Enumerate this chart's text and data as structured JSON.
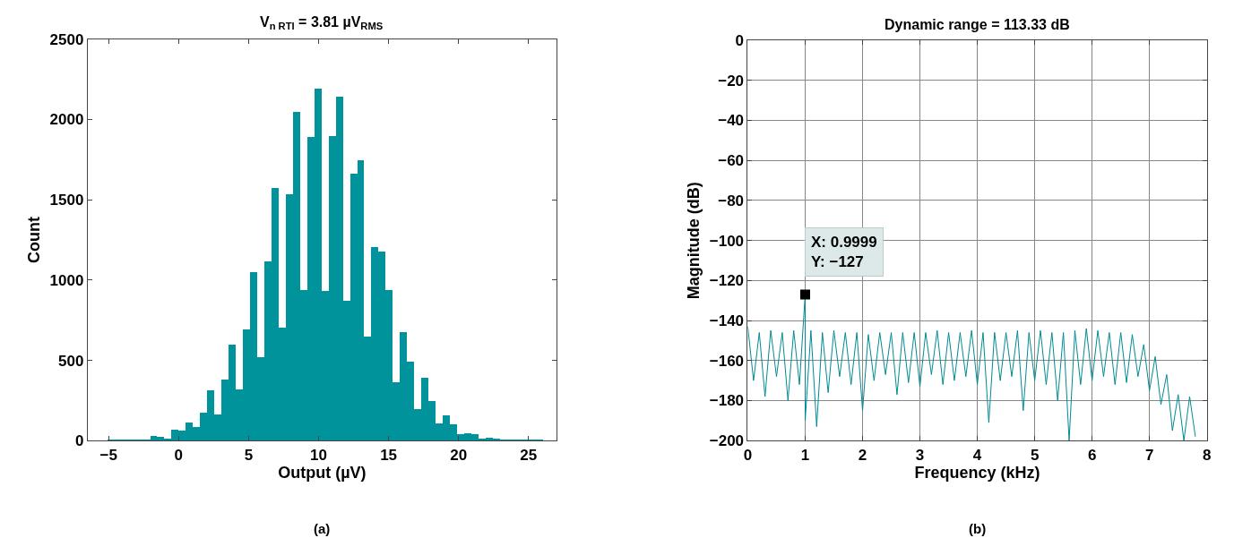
{
  "chart_data": [
    {
      "type": "histogram",
      "title": "V$_{n RTI}$ = 3.81 µV$_{RMS}$",
      "xlabel": "Output (µV)",
      "ylabel": "Count",
      "bins": [
        -5.11,
        -4.6,
        -4.09,
        -3.58,
        -3.07,
        -2.56,
        -2.05,
        -1.54,
        -1.03,
        -0.52,
        -0.01,
        0.5,
        1.01,
        1.52,
        2.03,
        2.54,
        3.05,
        3.56,
        4.07,
        4.58,
        5.09,
        5.6,
        6.11,
        6.62,
        7.13,
        7.64,
        8.15,
        8.66,
        9.17,
        9.68,
        10.19,
        10.7,
        11.21,
        11.72,
        12.23,
        12.74,
        13.25,
        13.76,
        14.27,
        14.78,
        15.29,
        15.8,
        16.31,
        16.82,
        17.33,
        17.84,
        18.35,
        18.86,
        19.37,
        19.88,
        20.39,
        20.9,
        21.41,
        21.92,
        22.43,
        22.94,
        23.45,
        23.96,
        24.47,
        24.98,
        25.49,
        26.0,
        26.51
      ],
      "values": [
        2,
        3,
        2,
        4,
        5,
        8,
        30,
        24,
        15,
        67,
        61,
        115,
        84,
        177,
        315,
        164,
        380,
        600,
        319,
        695,
        1051,
        520,
        1116,
        1572,
        706,
        1535,
        2047,
        937,
        1891,
        2193,
        933,
        1900,
        2144,
        874,
        1666,
        1746,
        648,
        1209,
        1176,
        939,
        367,
        676,
        492,
        197,
        391,
        250,
        106,
        158,
        101,
        41,
        47,
        41,
        13,
        19,
        11,
        6,
        4,
        3,
        2,
        2,
        3,
        1
      ],
      "color": "#00939c",
      "xlim": [
        -6.5,
        27
      ],
      "ylim": [
        0,
        2500
      ],
      "xticks": [
        {
          "value": -5,
          "label": "−5"
        },
        0,
        5,
        10,
        15,
        20,
        25
      ],
      "yticks": [
        0,
        500,
        1000,
        1500,
        2000,
        2500
      ],
      "grid": false,
      "annotations": [
        "(a)"
      ]
    },
    {
      "type": "line",
      "title": "Dynamic range = 113.33 dB",
      "xlabel": "Frequency (kHz)",
      "ylabel": "Magnitude (dB)",
      "x": [
        0.0,
        0.1,
        0.2,
        0.3,
        0.4,
        0.5,
        0.6,
        0.7,
        0.8,
        0.9,
        0.9999,
        1.0,
        1.1,
        1.2,
        1.3,
        1.4,
        1.5,
        1.6,
        1.7,
        1.8,
        1.9,
        2.0,
        2.1,
        2.2,
        2.3,
        2.4,
        2.5,
        2.6,
        2.7,
        2.8,
        2.9,
        3.0,
        3.1,
        3.2,
        3.3,
        3.4,
        3.5,
        3.6,
        3.7,
        3.8,
        3.9,
        4.0,
        4.1,
        4.2,
        4.3,
        4.4,
        4.5,
        4.6,
        4.7,
        4.8,
        4.9,
        5.0,
        5.1,
        5.2,
        5.3,
        5.4,
        5.5,
        5.6,
        5.7,
        5.8,
        5.9,
        6.0,
        6.1,
        6.2,
        6.3,
        6.4,
        6.5,
        6.6,
        6.7,
        6.8,
        6.9,
        7.0,
        7.1,
        7.2,
        7.3,
        7.4,
        7.5,
        7.6,
        7.7,
        7.8
      ],
      "values": [
        -143,
        -170,
        -146,
        -178,
        -145,
        -168,
        -146,
        -180,
        -145,
        -172,
        -127,
        -190,
        -145,
        -193,
        -146,
        -176,
        -145,
        -168,
        -146,
        -172,
        -146,
        -185,
        -147,
        -170,
        -146,
        -167,
        -146,
        -177,
        -146,
        -171,
        -146,
        -173,
        -146,
        -167,
        -145,
        -172,
        -146,
        -170,
        -146,
        -168,
        -145,
        -172,
        -146,
        -191,
        -146,
        -170,
        -146,
        -168,
        -145,
        -185,
        -146,
        -170,
        -145,
        -172,
        -146,
        -180,
        -146,
        -200,
        -145,
        -172,
        -144,
        -170,
        -145,
        -168,
        -146,
        -172,
        -146,
        -171,
        -147,
        -168,
        -152,
        -175,
        -158,
        -182,
        -167,
        -195,
        -177,
        -200,
        -178,
        -198
      ],
      "color": "#008a94",
      "xlim": [
        0,
        8
      ],
      "ylim": [
        -200,
        0
      ],
      "xticks": [
        0,
        1,
        2,
        3,
        4,
        5,
        6,
        7,
        8
      ],
      "yticks": [
        0,
        {
          "value": -20,
          "label": "−20"
        },
        {
          "value": -40,
          "label": "−40"
        },
        {
          "value": -60,
          "label": "−60"
        },
        {
          "value": -80,
          "label": "−80"
        },
        {
          "value": -100,
          "label": "−100"
        },
        {
          "value": -120,
          "label": "−120"
        },
        {
          "value": -140,
          "label": "−140"
        },
        {
          "value": -160,
          "label": "−160"
        },
        {
          "value": -180,
          "label": "−180"
        },
        {
          "value": -200,
          "label": "−200"
        }
      ],
      "grid": true,
      "marker": "none",
      "line_style": "solid",
      "annotations": [
        {
          "text": "X: 0.9999\nY: −127",
          "x": 0.9999,
          "y": -127
        },
        "(b)"
      ]
    }
  ]
}
